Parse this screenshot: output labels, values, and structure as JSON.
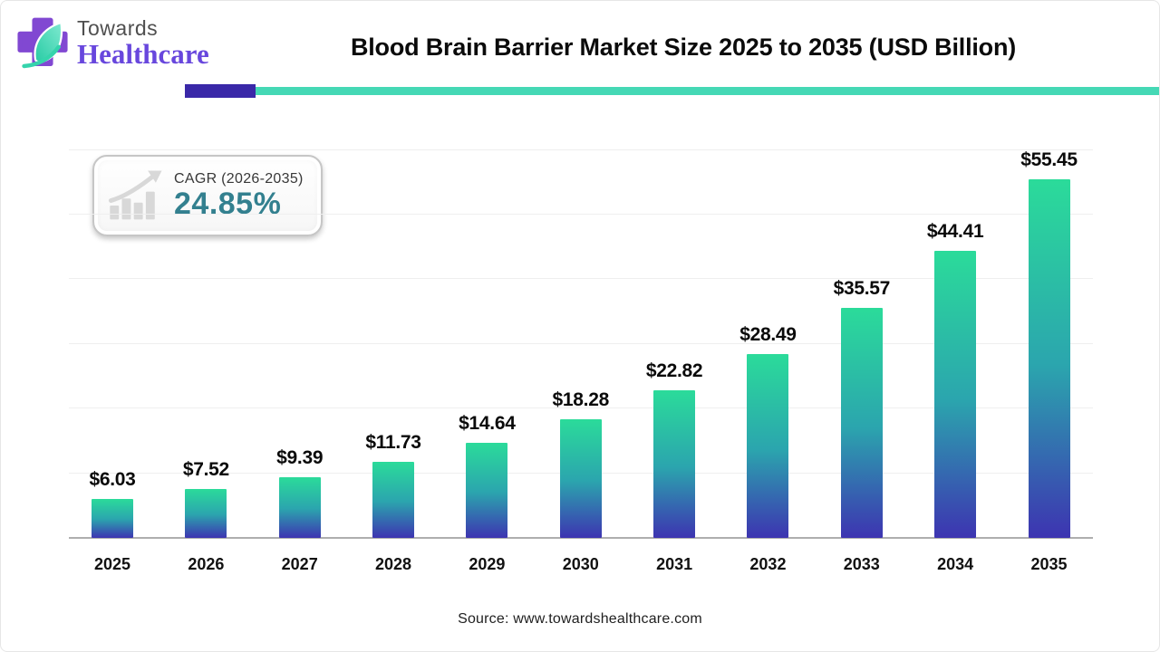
{
  "header": {
    "logo": {
      "line1": "Towards",
      "line2": "Healthcare"
    },
    "title": "Blood Brain Barrier Market Size 2025 to 2035 (USD Billion)"
  },
  "badge": {
    "label": "CAGR (2026-2035)",
    "value": "24.85%"
  },
  "chart_data": {
    "type": "bar",
    "title": "Blood Brain Barrier Market Size 2025 to 2035 (USD Billion)",
    "categories": [
      "2025",
      "2026",
      "2027",
      "2028",
      "2029",
      "2030",
      "2031",
      "2032",
      "2033",
      "2034",
      "2035"
    ],
    "values": [
      6.03,
      7.52,
      9.39,
      11.73,
      14.64,
      18.28,
      22.82,
      28.49,
      35.57,
      44.41,
      55.45
    ],
    "value_prefix": "$",
    "xlabel": "",
    "ylabel": "",
    "ylim": [
      0,
      60
    ],
    "grid_step": 10,
    "grid_on": true,
    "legend": false,
    "annotation": "CAGR (2026-2035): 24.85%"
  },
  "footer": {
    "source": "Source: www.towardshealthcare.com"
  },
  "colors": {
    "bar_gradient_top": "#2bdb9a",
    "bar_gradient_mid": "#2ba5ae",
    "bar_gradient_bottom": "#3d34b1",
    "divider_purple": "#3a28a8",
    "divider_teal": "#45d8b5",
    "cagr_value_teal": "#33808f",
    "brand_purple": "#6847dd",
    "logo_cross_purple": "#8148d2",
    "logo_leaf_mint": "#35d4ac",
    "title_text": "#0b0b0b",
    "axis_line_gray": "#aeaeae",
    "gridline_gray": "#efefef",
    "source_text": "#1f1f1f"
  }
}
